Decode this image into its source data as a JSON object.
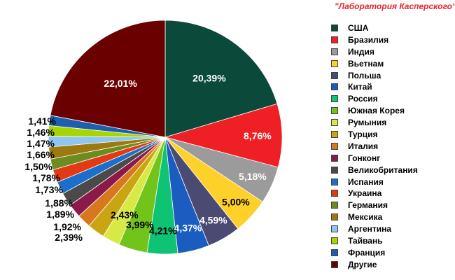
{
  "source": "\"Лаборатория Касперского\"",
  "chart_data": {
    "type": "pie",
    "legend_position": "right",
    "slices": [
      {
        "label": "США",
        "value": 20.39,
        "value_label": "20,39%",
        "color": "#0b4a3b",
        "label_color": "#ffffff"
      },
      {
        "label": "Бразилия",
        "value": 8.76,
        "value_label": "8,76%",
        "color": "#ef2025",
        "label_color": "#ffffff"
      },
      {
        "label": "Индия",
        "value": 5.18,
        "value_label": "5,18%",
        "color": "#9b9b9b",
        "label_color": "#ffffff"
      },
      {
        "label": "Вьетнам",
        "value": 5.0,
        "value_label": "5,00%",
        "color": "#fdd129",
        "label_color": "#000000"
      },
      {
        "label": "Польша",
        "value": 4.59,
        "value_label": "4,59%",
        "color": "#4a4a72",
        "label_color": "#ffffff"
      },
      {
        "label": "Китай",
        "value": 4.37,
        "value_label": "4,37%",
        "color": "#1b5cc0",
        "label_color": "#ffffff"
      },
      {
        "label": "Россия",
        "value": 4.21,
        "value_label": "4,21%",
        "color": "#0ec474",
        "label_color": "#000000"
      },
      {
        "label": "Южная Корея",
        "value": 3.99,
        "value_label": "3,99%",
        "color": "#72c41a",
        "label_color": "#000000"
      },
      {
        "label": "Румыния",
        "value": 2.43,
        "value_label": "2,43%",
        "color": "#d8e845",
        "label_color": "#000000"
      },
      {
        "label": "Турция",
        "value": 2.39,
        "value_label": "2,39%",
        "color": "#c9a611",
        "label_color": "#000000"
      },
      {
        "label": "Италия",
        "value": 1.92,
        "value_label": "1,92%",
        "color": "#d9771e",
        "label_color": "#000000"
      },
      {
        "label": "Гонконг",
        "value": 1.89,
        "value_label": "1,89%",
        "color": "#8b1a4a",
        "label_color": "#000000"
      },
      {
        "label": "Великобритания",
        "value": 1.88,
        "value_label": "1,88%",
        "color": "#4a4a4a",
        "label_color": "#000000"
      },
      {
        "label": "Испания",
        "value": 1.73,
        "value_label": "1,73%",
        "color": "#1b6ec9",
        "label_color": "#000000"
      },
      {
        "label": "Украина",
        "value": 1.78,
        "value_label": "1,78%",
        "color": "#e23a12",
        "label_color": "#000000"
      },
      {
        "label": "Германия",
        "value": 1.5,
        "value_label": "1,50%",
        "color": "#6b8c1e",
        "label_color": "#000000"
      },
      {
        "label": "Мексика",
        "value": 1.66,
        "value_label": "1,66%",
        "color": "#9c7a10",
        "label_color": "#000000"
      },
      {
        "label": "Аргентина",
        "value": 1.47,
        "value_label": "1,47%",
        "color": "#8fc6f0",
        "label_color": "#000000"
      },
      {
        "label": "Тайвань",
        "value": 1.46,
        "value_label": "1,46%",
        "color": "#a8d400",
        "label_color": "#000000"
      },
      {
        "label": "Франция",
        "value": 1.41,
        "value_label": "1,41%",
        "color": "#1d5fae",
        "label_color": "#000000"
      },
      {
        "label": "Другие",
        "value": 22.01,
        "value_label": "22,01%",
        "color": "#6b0000",
        "label_color": "#ffffff"
      }
    ]
  }
}
